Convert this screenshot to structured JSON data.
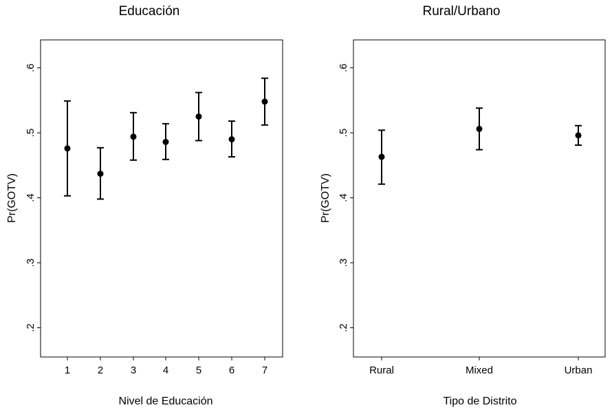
{
  "chart_data": [
    {
      "type": "scatter",
      "subtype": "point-with-error-bars",
      "title": "Educación",
      "xlabel": "Nivel de Educación",
      "ylabel": "Pr(GOTV)",
      "categories": [
        "1",
        "2",
        "3",
        "4",
        "5",
        "6",
        "7"
      ],
      "values": [
        0.476,
        0.437,
        0.494,
        0.486,
        0.525,
        0.49,
        0.548
      ],
      "lower": [
        0.403,
        0.398,
        0.458,
        0.459,
        0.488,
        0.463,
        0.512
      ],
      "upper": [
        0.549,
        0.477,
        0.531,
        0.514,
        0.562,
        0.518,
        0.584
      ],
      "yticks": [
        0.2,
        0.3,
        0.4,
        0.5,
        0.6
      ],
      "ytick_labels": [
        ".2",
        ".3",
        ".4",
        ".5",
        ".6"
      ],
      "ylim": [
        0.155,
        0.643
      ],
      "grid": false
    },
    {
      "type": "scatter",
      "subtype": "point-with-error-bars",
      "title": "Rural/Urbano",
      "xlabel": "Tipo de Distrito",
      "ylabel": "Pr(GOTV)",
      "categories": [
        "Rural",
        "Mixed",
        "Urban"
      ],
      "values": [
        0.463,
        0.506,
        0.496
      ],
      "lower": [
        0.421,
        0.474,
        0.481
      ],
      "upper": [
        0.504,
        0.538,
        0.511
      ],
      "yticks": [
        0.2,
        0.3,
        0.4,
        0.5,
        0.6
      ],
      "ytick_labels": [
        ".2",
        ".3",
        ".4",
        ".5",
        ".6"
      ],
      "ylim": [
        0.155,
        0.643
      ],
      "grid": false
    }
  ]
}
